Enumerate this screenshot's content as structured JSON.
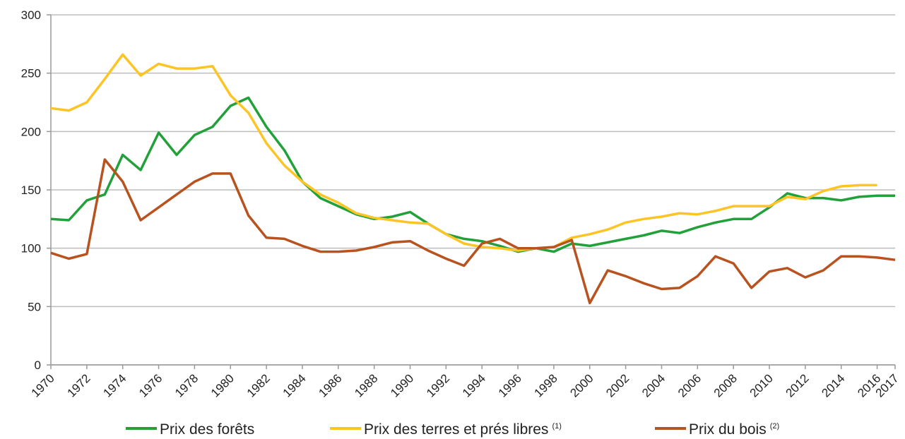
{
  "chart_data": {
    "type": "line",
    "x": [
      1970,
      1971,
      1972,
      1973,
      1974,
      1975,
      1976,
      1977,
      1978,
      1979,
      1980,
      1981,
      1982,
      1983,
      1984,
      1985,
      1986,
      1987,
      1988,
      1989,
      1990,
      1991,
      1992,
      1993,
      1994,
      1995,
      1996,
      1997,
      1998,
      1999,
      2000,
      2001,
      2002,
      2003,
      2004,
      2005,
      2006,
      2007,
      2008,
      2009,
      2010,
      2011,
      2012,
      2013,
      2014,
      2015,
      2016,
      2017
    ],
    "series": [
      {
        "name": "Prix des forêts",
        "color": "#22a03a",
        "values": [
          125,
          124,
          141,
          146,
          180,
          167,
          199,
          180,
          197,
          204,
          222,
          229,
          204,
          184,
          157,
          143,
          136,
          129,
          125,
          127,
          131,
          121,
          112,
          108,
          106,
          102,
          97,
          100,
          97,
          104,
          102,
          105,
          108,
          111,
          115,
          113,
          118,
          122,
          125,
          125,
          135,
          147,
          143,
          143,
          141,
          144,
          145,
          145
        ]
      },
      {
        "name": "Prix des terres et prés libres",
        "note": "(1)",
        "color": "#fdc425",
        "values": [
          220,
          218,
          225,
          245,
          266,
          248,
          258,
          254,
          254,
          256,
          231,
          216,
          190,
          171,
          157,
          146,
          139,
          130,
          126,
          124,
          122,
          121,
          112,
          104,
          101,
          100,
          98,
          100,
          101,
          109,
          112,
          116,
          122,
          125,
          127,
          130,
          129,
          132,
          136,
          136,
          136,
          144,
          142,
          149,
          153,
          154,
          154,
          null
        ]
      },
      {
        "name": "Prix du bois",
        "note": "(2)",
        "color": "#b8521f",
        "values": [
          96,
          91,
          95,
          176,
          157,
          124,
          135,
          146,
          157,
          164,
          164,
          128,
          109,
          108,
          102,
          97,
          97,
          98,
          101,
          105,
          106,
          98,
          91,
          85,
          104,
          108,
          100,
          100,
          101,
          107,
          53,
          81,
          76,
          70,
          65,
          66,
          76,
          93,
          87,
          66,
          80,
          83,
          75,
          81,
          93,
          93,
          92,
          90
        ]
      }
    ],
    "xlim": [
      1970,
      2017
    ],
    "xticks": [
      1970,
      1972,
      1974,
      1976,
      1978,
      1980,
      1982,
      1984,
      1986,
      1988,
      1990,
      1992,
      1994,
      1996,
      1998,
      2000,
      2002,
      2004,
      2006,
      2008,
      2010,
      2012,
      2014,
      2016,
      2017
    ],
    "ylim": [
      0,
      300
    ],
    "yticks": [
      0,
      50,
      100,
      150,
      200,
      250,
      300
    ],
    "grid": true
  }
}
